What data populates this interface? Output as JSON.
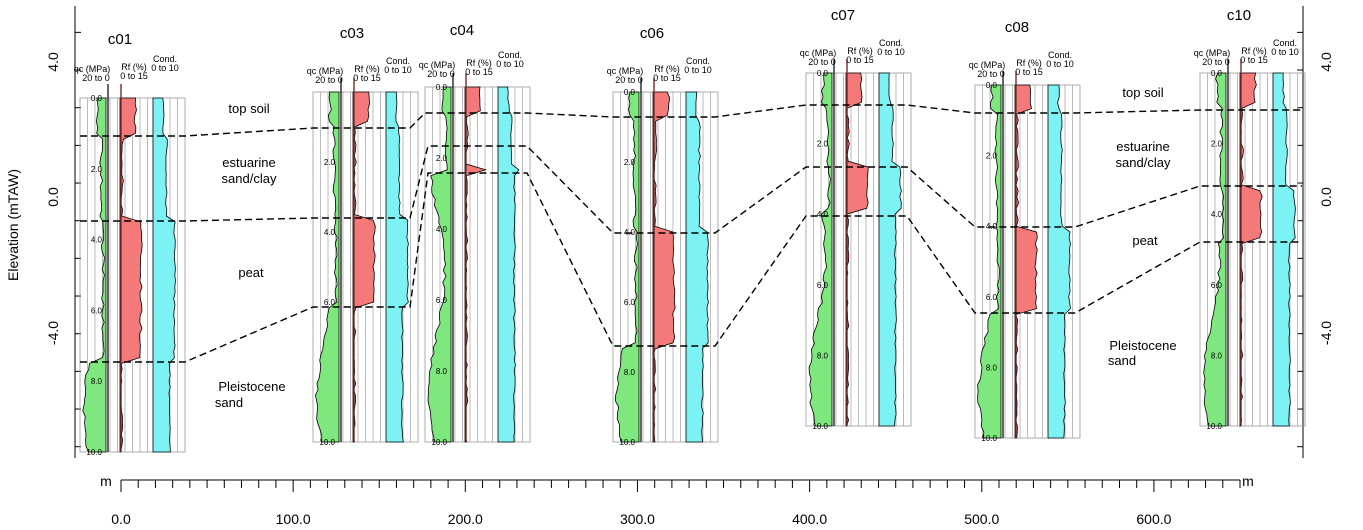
{
  "figure": {
    "y_axis_label": "Elevation (mTAW)",
    "distance_unit": "m",
    "column_headers": {
      "qc": "qc (MPa)",
      "qc_range": "20 to 0",
      "rf": "Rf (%)",
      "rf_range": "0 to 15",
      "cond": "Cond.",
      "cond_range": "0 to 10"
    },
    "colors": {
      "qc": "#7ee87e",
      "rf": "#f47a7a",
      "cond": "#7df2f5",
      "boundary": "#000000"
    }
  },
  "chart_data": {
    "type": "diagram",
    "elevation_ticks": [
      "4.0",
      "0.0",
      "-4.0"
    ],
    "elevation_range_mTAW": [
      -6.8,
      5.2
    ],
    "distance_ticks": [
      "0.0",
      "100.0",
      "200.0",
      "300.0",
      "400.0",
      "500.0",
      "600.0"
    ],
    "distance_range_m": [
      0,
      650
    ],
    "units": [
      "top soil",
      "estuarine sand/clay",
      "peat",
      "Pleistocene sand"
    ],
    "cpts": [
      {
        "id": "c01",
        "depth_ticks": [
          "0.0",
          "2.0",
          "4.0",
          "6.0",
          "8.0",
          "10.0"
        ]
      },
      {
        "id": "c03",
        "depth_ticks": [
          "2.0",
          "4.0",
          "6.0",
          "10.0"
        ]
      },
      {
        "id": "c04",
        "depth_ticks": [
          "0.0",
          "2.0",
          "4.0",
          "6.0",
          "8.0",
          "10.0"
        ]
      },
      {
        "id": "c06",
        "depth_ticks": [
          "0.0",
          "2.0",
          "4.0",
          "6.0",
          "8.0",
          "10.0"
        ]
      },
      {
        "id": "c07",
        "depth_ticks": [
          "0.0",
          "2.0",
          "4.0",
          "6.0",
          "8.0",
          "10.0"
        ]
      },
      {
        "id": "c08",
        "depth_ticks": [
          "0.0",
          "2.0",
          "4.0",
          "6.0",
          "8.0",
          "10.0"
        ]
      },
      {
        "id": "c10",
        "depth_ticks": [
          "0.0",
          "2.0",
          "4.0",
          "6.0",
          "8.0",
          "10.0"
        ]
      }
    ]
  }
}
